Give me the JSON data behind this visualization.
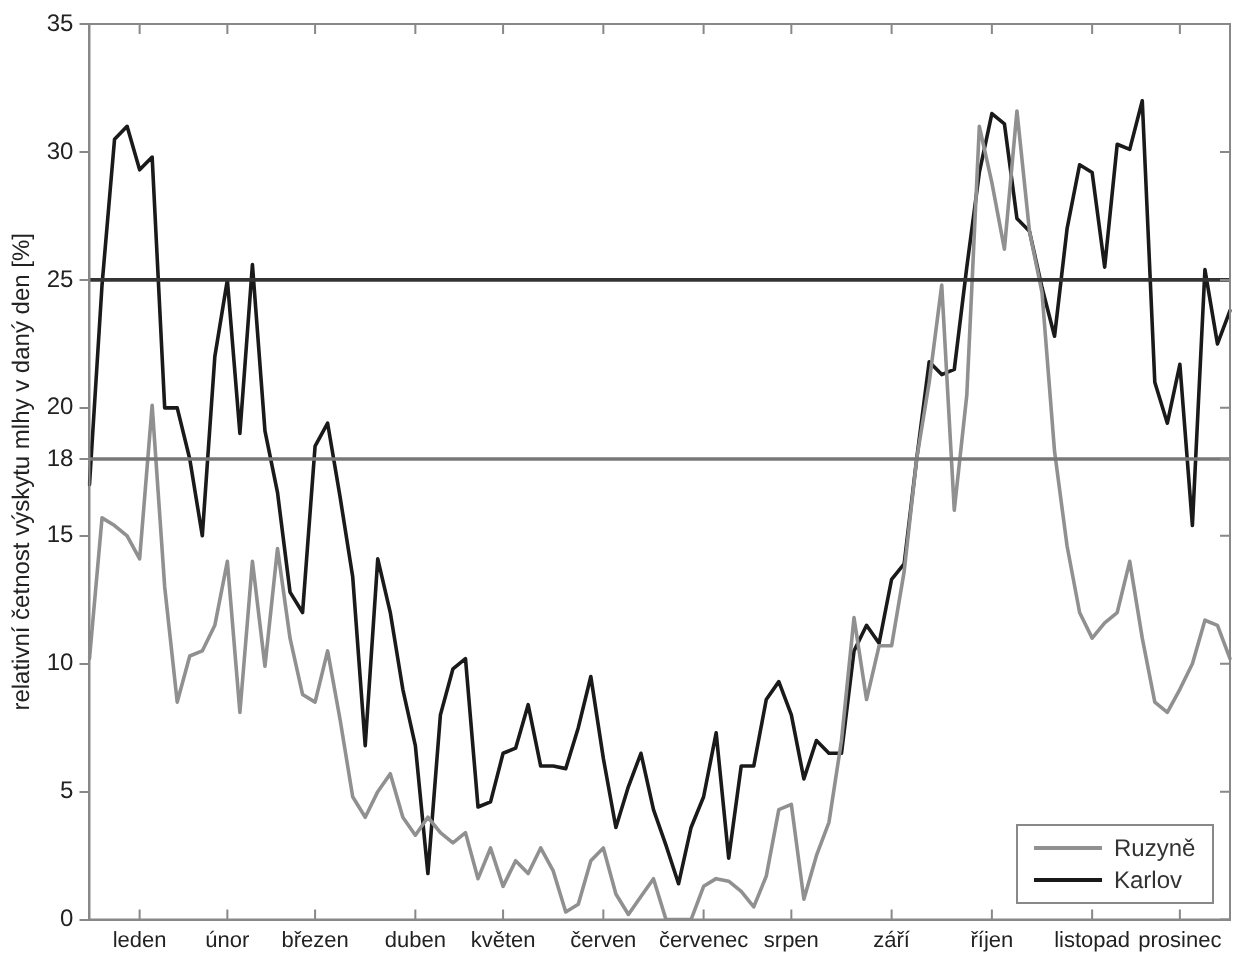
{
  "chart_data": {
    "type": "line",
    "ylabel": "relativní četnost výskytu mlhy v daný den [%]",
    "categories": [
      null,
      null,
      null,
      null,
      "leden",
      null,
      null,
      null,
      null,
      null,
      null,
      "únor",
      null,
      null,
      null,
      null,
      null,
      null,
      "březen",
      null,
      null,
      null,
      null,
      null,
      null,
      null,
      "duben",
      null,
      null,
      null,
      null,
      null,
      null,
      "květen",
      null,
      null,
      null,
      null,
      null,
      null,
      null,
      "červen",
      null,
      null,
      null,
      null,
      null,
      null,
      null,
      "červenec",
      null,
      null,
      null,
      null,
      null,
      null,
      "srpen",
      null,
      null,
      null,
      null,
      null,
      null,
      null,
      "září",
      null,
      null,
      null,
      null,
      null,
      null,
      null,
      "říjen",
      null,
      null,
      null,
      null,
      null,
      null,
      null,
      "listopad",
      null,
      null,
      null,
      null,
      null,
      null,
      "prosinec",
      null,
      null,
      null,
      null
    ],
    "ylim": [
      0,
      35
    ],
    "yticks": [
      0,
      5,
      10,
      15,
      18,
      20,
      25,
      30,
      35
    ],
    "grid": false,
    "legend": "bottom right",
    "marker": "none",
    "line_style": "solid",
    "ref_lines": [
      {
        "axis": "y",
        "value": 25,
        "color": "#333333"
      },
      {
        "axis": "y",
        "value": 18,
        "color": "#777777"
      }
    ],
    "series": [
      {
        "name": "Ruzyně",
        "color": "#909090",
        "values": [
          10.2,
          15.7,
          15.4,
          15,
          14.1,
          20.1,
          13,
          8.5,
          10.3,
          10.5,
          11.5,
          14,
          8.1,
          14,
          9.9,
          14.5,
          11,
          8.8,
          8.5,
          10.5,
          7.8,
          4.8,
          4,
          5,
          5.7,
          4,
          3.3,
          4,
          3.4,
          3,
          3.4,
          1.6,
          2.8,
          1.3,
          2.3,
          1.8,
          2.8,
          1.9,
          0.3,
          0.6,
          2.3,
          2.8,
          1,
          0.2,
          0.9,
          1.6,
          0,
          0,
          0,
          1.3,
          1.6,
          1.5,
          1.1,
          0.5,
          1.7,
          4.3,
          4.5,
          0.8,
          2.5,
          3.8,
          7,
          11.8,
          8.6,
          10.7,
          10.7,
          13.6,
          18,
          21,
          24.8,
          16,
          20.5,
          31,
          28.8,
          26.2,
          31.6,
          26.9,
          24.5,
          18.3,
          14.6,
          12,
          11,
          11.6,
          12,
          14,
          11,
          8.5,
          8.1,
          9,
          10,
          11.7,
          11.5,
          10.2
        ]
      },
      {
        "name": "Karlov",
        "color": "#1a1a1a",
        "values": [
          17,
          24.8,
          30.5,
          31,
          29.3,
          29.8,
          20,
          20,
          18,
          15,
          22,
          25,
          19,
          25.6,
          19.1,
          16.7,
          12.8,
          12,
          18.5,
          19.4,
          16.5,
          13.4,
          6.8,
          14.1,
          12,
          9,
          6.8,
          1.8,
          8,
          9.8,
          10.2,
          4.4,
          4.6,
          6.5,
          6.7,
          8.4,
          6,
          6,
          5.9,
          7.5,
          9.5,
          6.3,
          3.6,
          5.2,
          6.5,
          4.3,
          2.9,
          1.4,
          3.6,
          4.8,
          7.3,
          2.4,
          6,
          6,
          8.6,
          9.3,
          8,
          5.5,
          7,
          6.5,
          6.5,
          10.5,
          11.5,
          10.8,
          13.3,
          13.9,
          18,
          21.8,
          21.3,
          21.5,
          25.5,
          29.2,
          31.5,
          31.1,
          27.4,
          26.9,
          24.7,
          22.8,
          27,
          29.5,
          29.2,
          25.5,
          30.3,
          30.1,
          32,
          21,
          19.4,
          21.7,
          15.4,
          25.4,
          22.5,
          23.8
        ]
      }
    ]
  }
}
